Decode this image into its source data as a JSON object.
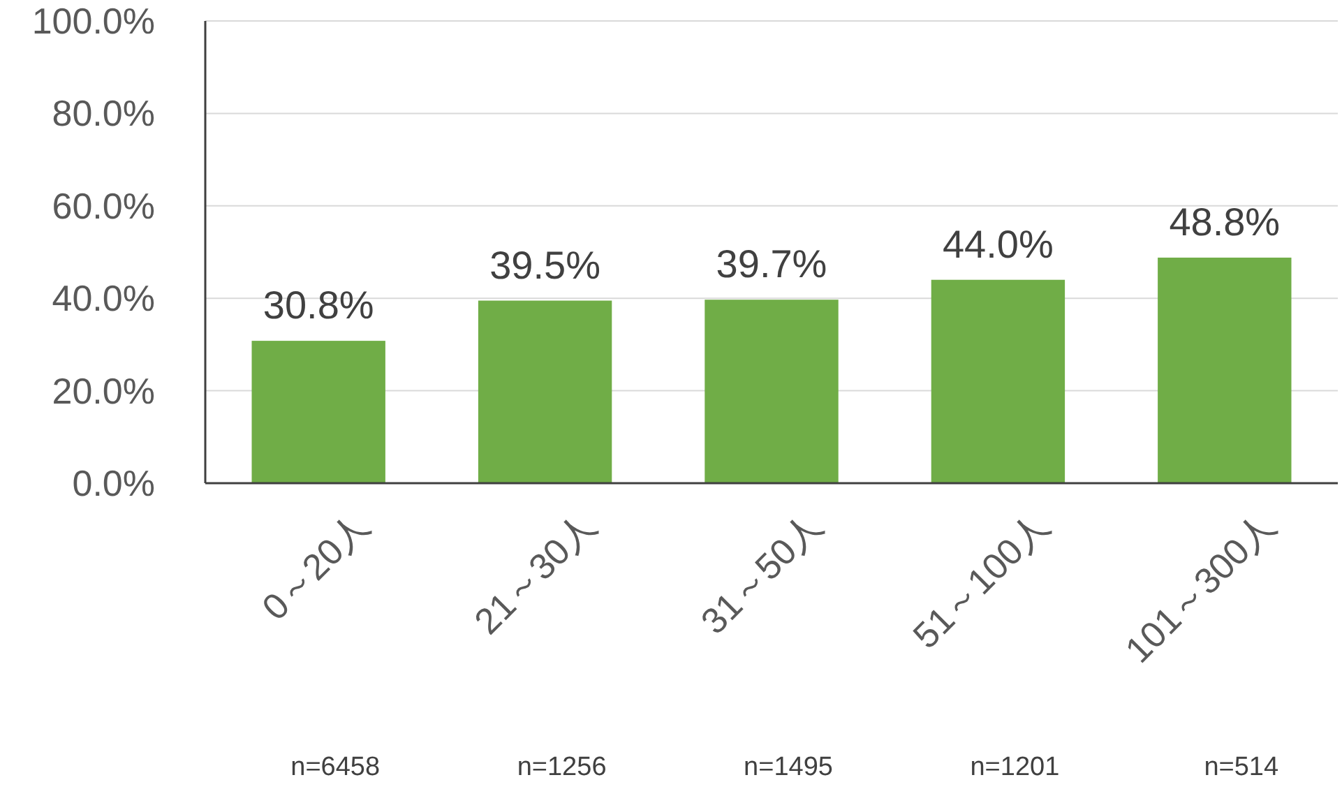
{
  "chart_data": {
    "type": "bar",
    "categories": [
      "0～20人",
      "21～30人",
      "31～50人",
      "51～100人",
      "101～300人"
    ],
    "values": [
      30.8,
      39.5,
      39.7,
      44.0,
      48.8
    ],
    "value_labels": [
      "30.8%",
      "39.5%",
      "39.7%",
      "44.0%",
      "48.8%"
    ],
    "color": "#70ad47",
    "ylim": [
      0,
      100
    ],
    "yticks": [
      {
        "value": 0,
        "label": "0.0%"
      },
      {
        "value": 20,
        "label": "20.0%"
      },
      {
        "value": 40,
        "label": "40.0%"
      },
      {
        "value": 60,
        "label": "60.0%"
      },
      {
        "value": 80,
        "label": "80.0%"
      },
      {
        "value": 100,
        "label": "100.0%"
      }
    ],
    "grid": "y",
    "annotations": [
      "n=6458",
      "n=1256",
      "n=1495",
      "n=1201",
      "n=514"
    ]
  }
}
